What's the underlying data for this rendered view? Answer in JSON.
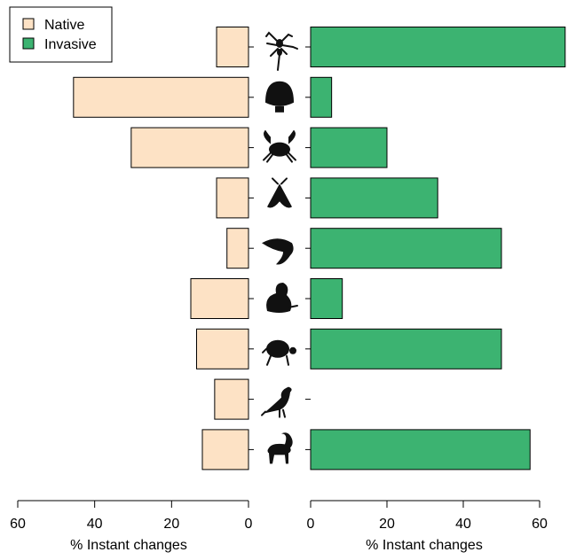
{
  "chart_data": {
    "type": "bar",
    "orientation": "horizontal",
    "layout": "back-to-back",
    "legend": {
      "placement": "top-left",
      "entries": [
        {
          "label": "Native",
          "color": "#fde2c5"
        },
        {
          "label": "Invasive",
          "color": "#3cb371"
        }
      ]
    },
    "categories": [
      "spider-icon",
      "shell-icon",
      "crab-icon",
      "moth-icon",
      "fish-icon",
      "frog-icon",
      "turtle-icon",
      "bird-icon",
      "goat-icon"
    ],
    "series": [
      {
        "name": "Native",
        "values": [
          8.3,
          45.5,
          30.5,
          8.3,
          5.6,
          15.0,
          13.5,
          8.8,
          12.0
        ]
      },
      {
        "name": "Invasive",
        "values": [
          66.7,
          5.5,
          20.0,
          33.3,
          50.0,
          8.3,
          50.0,
          0.0,
          57.5
        ]
      }
    ],
    "left_axis": {
      "xlabel": "% Instant changes",
      "ticks": [
        60,
        40,
        20,
        0
      ],
      "xlim": [
        0,
        60
      ],
      "reversed": true
    },
    "right_axis": {
      "xlabel": "% Instant changes",
      "ticks": [
        0,
        20,
        40,
        60
      ],
      "xlim": [
        0,
        60
      ]
    },
    "grid": false
  }
}
